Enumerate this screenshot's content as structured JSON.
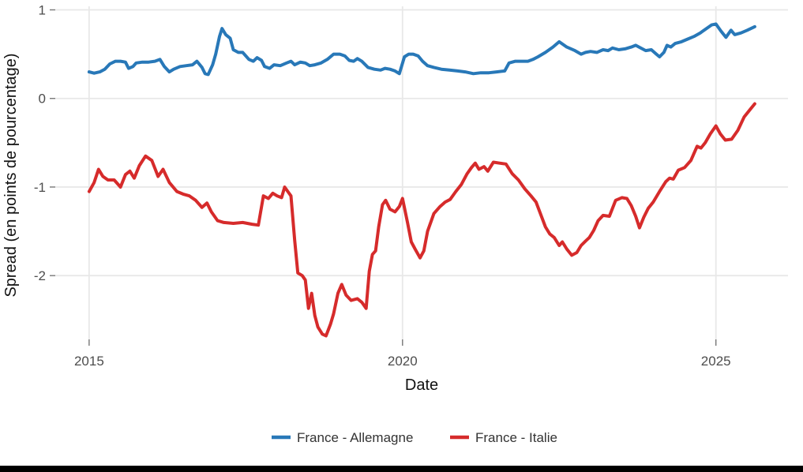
{
  "chart_data": {
    "type": "line",
    "title": "",
    "xlabel": "Date",
    "ylabel": "Spread (en points de pourcentage)",
    "x_domain": [
      2014.46,
      2026.15
    ],
    "y_domain": [
      -2.72,
      1.04
    ],
    "grid": true,
    "legend_position": "bottom",
    "x_ticks": [
      {
        "value": 2015,
        "label": "2015"
      },
      {
        "value": 2020,
        "label": "2020"
      },
      {
        "value": 2025,
        "label": "2025"
      }
    ],
    "y_ticks": [
      {
        "value": 1,
        "label": "1"
      },
      {
        "value": 0,
        "label": "0"
      },
      {
        "value": -1,
        "label": "-1"
      },
      {
        "value": -2,
        "label": "-2"
      }
    ],
    "colors": {
      "grid": "#e8e8e8",
      "tick_mark": "#777777",
      "tick_text": "#4d4d4d",
      "axis_title_text": "#111111",
      "legend_text": "#333333",
      "series_blue": "#2878b8",
      "series_red": "#d62b2b",
      "bottom_bar": "#000000"
    },
    "series": [
      {
        "name": "France - Allemagne",
        "color": "#2878b8",
        "points": [
          [
            2015.0,
            0.3
          ],
          [
            2015.08,
            0.285
          ],
          [
            2015.17,
            0.3
          ],
          [
            2015.25,
            0.33
          ],
          [
            2015.33,
            0.39
          ],
          [
            2015.42,
            0.42
          ],
          [
            2015.5,
            0.42
          ],
          [
            2015.58,
            0.41
          ],
          [
            2015.63,
            0.34
          ],
          [
            2015.7,
            0.36
          ],
          [
            2015.75,
            0.4
          ],
          [
            2015.85,
            0.41
          ],
          [
            2015.95,
            0.41
          ],
          [
            2016.05,
            0.42
          ],
          [
            2016.13,
            0.44
          ],
          [
            2016.2,
            0.36
          ],
          [
            2016.28,
            0.3
          ],
          [
            2016.35,
            0.33
          ],
          [
            2016.45,
            0.36
          ],
          [
            2016.55,
            0.37
          ],
          [
            2016.65,
            0.38
          ],
          [
            2016.72,
            0.42
          ],
          [
            2016.8,
            0.35
          ],
          [
            2016.85,
            0.28
          ],
          [
            2016.9,
            0.27
          ],
          [
            2016.97,
            0.38
          ],
          [
            2017.02,
            0.5
          ],
          [
            2017.08,
            0.7
          ],
          [
            2017.12,
            0.79
          ],
          [
            2017.18,
            0.72
          ],
          [
            2017.25,
            0.68
          ],
          [
            2017.3,
            0.55
          ],
          [
            2017.38,
            0.52
          ],
          [
            2017.45,
            0.52
          ],
          [
            2017.55,
            0.44
          ],
          [
            2017.62,
            0.42
          ],
          [
            2017.68,
            0.46
          ],
          [
            2017.75,
            0.43
          ],
          [
            2017.8,
            0.36
          ],
          [
            2017.88,
            0.34
          ],
          [
            2017.95,
            0.38
          ],
          [
            2018.05,
            0.37
          ],
          [
            2018.15,
            0.4
          ],
          [
            2018.22,
            0.42
          ],
          [
            2018.28,
            0.38
          ],
          [
            2018.37,
            0.41
          ],
          [
            2018.45,
            0.4
          ],
          [
            2018.52,
            0.37
          ],
          [
            2018.6,
            0.38
          ],
          [
            2018.7,
            0.4
          ],
          [
            2018.8,
            0.44
          ],
          [
            2018.9,
            0.5
          ],
          [
            2019.0,
            0.5
          ],
          [
            2019.08,
            0.48
          ],
          [
            2019.15,
            0.43
          ],
          [
            2019.22,
            0.42
          ],
          [
            2019.28,
            0.45
          ],
          [
            2019.35,
            0.42
          ],
          [
            2019.45,
            0.35
          ],
          [
            2019.55,
            0.33
          ],
          [
            2019.65,
            0.32
          ],
          [
            2019.72,
            0.34
          ],
          [
            2019.8,
            0.33
          ],
          [
            2019.88,
            0.31
          ],
          [
            2019.95,
            0.28
          ],
          [
            2020.03,
            0.47
          ],
          [
            2020.1,
            0.5
          ],
          [
            2020.17,
            0.5
          ],
          [
            2020.25,
            0.48
          ],
          [
            2020.32,
            0.42
          ],
          [
            2020.4,
            0.37
          ],
          [
            2020.5,
            0.35
          ],
          [
            2020.62,
            0.33
          ],
          [
            2020.75,
            0.32
          ],
          [
            2020.88,
            0.31
          ],
          [
            2021.0,
            0.3
          ],
          [
            2021.13,
            0.28
          ],
          [
            2021.25,
            0.29
          ],
          [
            2021.38,
            0.29
          ],
          [
            2021.5,
            0.3
          ],
          [
            2021.63,
            0.31
          ],
          [
            2021.7,
            0.4
          ],
          [
            2021.8,
            0.42
          ],
          [
            2021.9,
            0.42
          ],
          [
            2022.0,
            0.42
          ],
          [
            2022.08,
            0.44
          ],
          [
            2022.16,
            0.47
          ],
          [
            2022.28,
            0.52
          ],
          [
            2022.4,
            0.58
          ],
          [
            2022.5,
            0.64
          ],
          [
            2022.62,
            0.58
          ],
          [
            2022.75,
            0.54
          ],
          [
            2022.85,
            0.5
          ],
          [
            2022.92,
            0.52
          ],
          [
            2023.0,
            0.53
          ],
          [
            2023.1,
            0.52
          ],
          [
            2023.2,
            0.55
          ],
          [
            2023.28,
            0.54
          ],
          [
            2023.35,
            0.57
          ],
          [
            2023.45,
            0.55
          ],
          [
            2023.55,
            0.56
          ],
          [
            2023.65,
            0.58
          ],
          [
            2023.72,
            0.6
          ],
          [
            2023.8,
            0.57
          ],
          [
            2023.88,
            0.54
          ],
          [
            2023.97,
            0.55
          ],
          [
            2024.05,
            0.5
          ],
          [
            2024.1,
            0.47
          ],
          [
            2024.17,
            0.52
          ],
          [
            2024.22,
            0.6
          ],
          [
            2024.28,
            0.58
          ],
          [
            2024.35,
            0.62
          ],
          [
            2024.45,
            0.64
          ],
          [
            2024.55,
            0.67
          ],
          [
            2024.65,
            0.7
          ],
          [
            2024.75,
            0.74
          ],
          [
            2024.85,
            0.79
          ],
          [
            2024.93,
            0.83
          ],
          [
            2025.0,
            0.84
          ],
          [
            2025.08,
            0.76
          ],
          [
            2025.16,
            0.69
          ],
          [
            2025.24,
            0.77
          ],
          [
            2025.3,
            0.72
          ],
          [
            2025.4,
            0.74
          ],
          [
            2025.5,
            0.77
          ],
          [
            2025.62,
            0.81
          ]
        ]
      },
      {
        "name": "France - Italie",
        "color": "#d62b2b",
        "points": [
          [
            2015.0,
            -1.05
          ],
          [
            2015.08,
            -0.95
          ],
          [
            2015.15,
            -0.8
          ],
          [
            2015.22,
            -0.88
          ],
          [
            2015.3,
            -0.92
          ],
          [
            2015.4,
            -0.92
          ],
          [
            2015.5,
            -1.0
          ],
          [
            2015.58,
            -0.86
          ],
          [
            2015.65,
            -0.82
          ],
          [
            2015.72,
            -0.9
          ],
          [
            2015.8,
            -0.76
          ],
          [
            2015.9,
            -0.65
          ],
          [
            2016.0,
            -0.7
          ],
          [
            2016.1,
            -0.88
          ],
          [
            2016.18,
            -0.8
          ],
          [
            2016.28,
            -0.95
          ],
          [
            2016.4,
            -1.05
          ],
          [
            2016.5,
            -1.08
          ],
          [
            2016.6,
            -1.1
          ],
          [
            2016.7,
            -1.15
          ],
          [
            2016.8,
            -1.23
          ],
          [
            2016.88,
            -1.18
          ],
          [
            2016.95,
            -1.28
          ],
          [
            2017.05,
            -1.38
          ],
          [
            2017.15,
            -1.4
          ],
          [
            2017.3,
            -1.41
          ],
          [
            2017.45,
            -1.4
          ],
          [
            2017.6,
            -1.42
          ],
          [
            2017.7,
            -1.43
          ],
          [
            2017.78,
            -1.1
          ],
          [
            2017.86,
            -1.13
          ],
          [
            2017.93,
            -1.07
          ],
          [
            2018.0,
            -1.1
          ],
          [
            2018.07,
            -1.12
          ],
          [
            2018.12,
            -1.0
          ],
          [
            2018.17,
            -1.05
          ],
          [
            2018.22,
            -1.1
          ],
          [
            2018.28,
            -1.6
          ],
          [
            2018.33,
            -1.97
          ],
          [
            2018.4,
            -2.0
          ],
          [
            2018.45,
            -2.05
          ],
          [
            2018.5,
            -2.37
          ],
          [
            2018.55,
            -2.2
          ],
          [
            2018.6,
            -2.45
          ],
          [
            2018.65,
            -2.58
          ],
          [
            2018.72,
            -2.66
          ],
          [
            2018.78,
            -2.68
          ],
          [
            2018.85,
            -2.55
          ],
          [
            2018.9,
            -2.43
          ],
          [
            2018.97,
            -2.2
          ],
          [
            2019.03,
            -2.1
          ],
          [
            2019.1,
            -2.22
          ],
          [
            2019.18,
            -2.28
          ],
          [
            2019.28,
            -2.26
          ],
          [
            2019.35,
            -2.3
          ],
          [
            2019.42,
            -2.37
          ],
          [
            2019.47,
            -1.95
          ],
          [
            2019.52,
            -1.76
          ],
          [
            2019.57,
            -1.72
          ],
          [
            2019.62,
            -1.45
          ],
          [
            2019.68,
            -1.2
          ],
          [
            2019.73,
            -1.15
          ],
          [
            2019.8,
            -1.25
          ],
          [
            2019.88,
            -1.28
          ],
          [
            2019.95,
            -1.22
          ],
          [
            2020.0,
            -1.13
          ],
          [
            2020.08,
            -1.4
          ],
          [
            2020.14,
            -1.62
          ],
          [
            2020.2,
            -1.7
          ],
          [
            2020.28,
            -1.8
          ],
          [
            2020.34,
            -1.72
          ],
          [
            2020.4,
            -1.5
          ],
          [
            2020.5,
            -1.3
          ],
          [
            2020.6,
            -1.22
          ],
          [
            2020.68,
            -1.17
          ],
          [
            2020.76,
            -1.14
          ],
          [
            2020.85,
            -1.05
          ],
          [
            2020.94,
            -0.97
          ],
          [
            2021.03,
            -0.85
          ],
          [
            2021.1,
            -0.78
          ],
          [
            2021.16,
            -0.73
          ],
          [
            2021.22,
            -0.8
          ],
          [
            2021.3,
            -0.77
          ],
          [
            2021.36,
            -0.82
          ],
          [
            2021.45,
            -0.72
          ],
          [
            2021.55,
            -0.73
          ],
          [
            2021.65,
            -0.74
          ],
          [
            2021.75,
            -0.85
          ],
          [
            2021.85,
            -0.92
          ],
          [
            2021.95,
            -1.02
          ],
          [
            2022.05,
            -1.1
          ],
          [
            2022.13,
            -1.17
          ],
          [
            2022.2,
            -1.3
          ],
          [
            2022.28,
            -1.45
          ],
          [
            2022.35,
            -1.53
          ],
          [
            2022.42,
            -1.57
          ],
          [
            2022.5,
            -1.66
          ],
          [
            2022.55,
            -1.62
          ],
          [
            2022.62,
            -1.7
          ],
          [
            2022.7,
            -1.77
          ],
          [
            2022.78,
            -1.74
          ],
          [
            2022.85,
            -1.66
          ],
          [
            2022.92,
            -1.61
          ],
          [
            2022.98,
            -1.57
          ],
          [
            2023.05,
            -1.49
          ],
          [
            2023.12,
            -1.38
          ],
          [
            2023.2,
            -1.32
          ],
          [
            2023.3,
            -1.33
          ],
          [
            2023.4,
            -1.15
          ],
          [
            2023.5,
            -1.12
          ],
          [
            2023.58,
            -1.13
          ],
          [
            2023.65,
            -1.21
          ],
          [
            2023.72,
            -1.33
          ],
          [
            2023.78,
            -1.46
          ],
          [
            2023.85,
            -1.34
          ],
          [
            2023.92,
            -1.24
          ],
          [
            2024.0,
            -1.17
          ],
          [
            2024.1,
            -1.05
          ],
          [
            2024.2,
            -0.94
          ],
          [
            2024.26,
            -0.9
          ],
          [
            2024.32,
            -0.91
          ],
          [
            2024.4,
            -0.81
          ],
          [
            2024.5,
            -0.78
          ],
          [
            2024.6,
            -0.7
          ],
          [
            2024.7,
            -0.54
          ],
          [
            2024.76,
            -0.56
          ],
          [
            2024.83,
            -0.5
          ],
          [
            2024.91,
            -0.4
          ],
          [
            2025.0,
            -0.31
          ],
          [
            2025.07,
            -0.4
          ],
          [
            2025.15,
            -0.47
          ],
          [
            2025.25,
            -0.46
          ],
          [
            2025.35,
            -0.36
          ],
          [
            2025.45,
            -0.21
          ],
          [
            2025.55,
            -0.12
          ],
          [
            2025.62,
            -0.06
          ]
        ]
      }
    ]
  },
  "legend": {
    "items": [
      {
        "label": "France - Allemagne",
        "color": "#2878b8"
      },
      {
        "label": "France - Italie",
        "color": "#d62b2b"
      }
    ]
  }
}
